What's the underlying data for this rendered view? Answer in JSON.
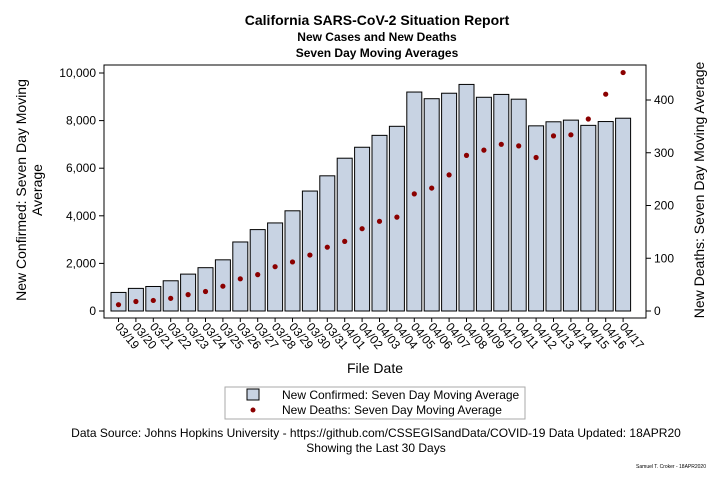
{
  "chart_data": {
    "type": "bar",
    "title": "California SARS-CoV-2 Situation Report",
    "subtitle1": "New Cases and New Deaths",
    "subtitle2": "Seven Day Moving Averages",
    "xlabel": "File Date",
    "ylabel_left_line1": "New Confirmed: Seven Day Moving",
    "ylabel_left_line2": "Average",
    "ylabel_right": "New Deaths: Seven Day Moving Average",
    "ylim_left": [
      0,
      10000
    ],
    "ylim_right": [
      0,
      450
    ],
    "yticks_left": [
      "0",
      "2,000",
      "4,000",
      "6,000",
      "8,000",
      "10,000"
    ],
    "yticks_right": [
      "0",
      "100",
      "200",
      "300",
      "400"
    ],
    "categories": [
      "03/19",
      "03/20",
      "03/21",
      "03/22",
      "03/23",
      "03/24",
      "03/25",
      "03/26",
      "03/27",
      "03/28",
      "03/29",
      "03/30",
      "03/31",
      "04/01",
      "04/02",
      "04/03",
      "04/04",
      "04/05",
      "04/06",
      "04/07",
      "04/08",
      "04/09",
      "04/10",
      "04/11",
      "04/12",
      "04/13",
      "04/14",
      "04/15",
      "04/16",
      "04/17"
    ],
    "series": [
      {
        "name": "New Confirmed: Seven Day Moving Average",
        "kind": "bar",
        "axis": "left",
        "color": "#c8d3e3",
        "values": [
          780,
          950,
          1030,
          1270,
          1550,
          1820,
          2150,
          2900,
          3420,
          3700,
          4210,
          5040,
          5680,
          6420,
          6880,
          7380,
          7760,
          9200,
          8920,
          9150,
          9520,
          8980,
          9100,
          8900,
          7780,
          7950,
          8020,
          7800,
          7960,
          8100
        ]
      },
      {
        "name": "New Deaths: Seven Day Moving Average",
        "kind": "scatter",
        "axis": "right",
        "color": "#8b0000",
        "values": [
          12,
          18,
          20,
          24,
          31,
          37,
          47,
          61,
          69,
          84,
          93,
          106,
          121,
          132,
          156,
          170,
          178,
          222,
          233,
          258,
          295,
          305,
          316,
          313,
          291,
          332,
          334,
          364,
          411,
          452
        ]
      }
    ],
    "grid": false,
    "legend": "bottom"
  },
  "footer": {
    "source_line": "Data Source: Johns Hopkins University - https://github.com/CSSEGISandData/COVID-19 Data Updated: 18APR20",
    "period_line": "Showing the Last 30 Days",
    "credit": "Samuel T. Croker - 18APR2020"
  }
}
